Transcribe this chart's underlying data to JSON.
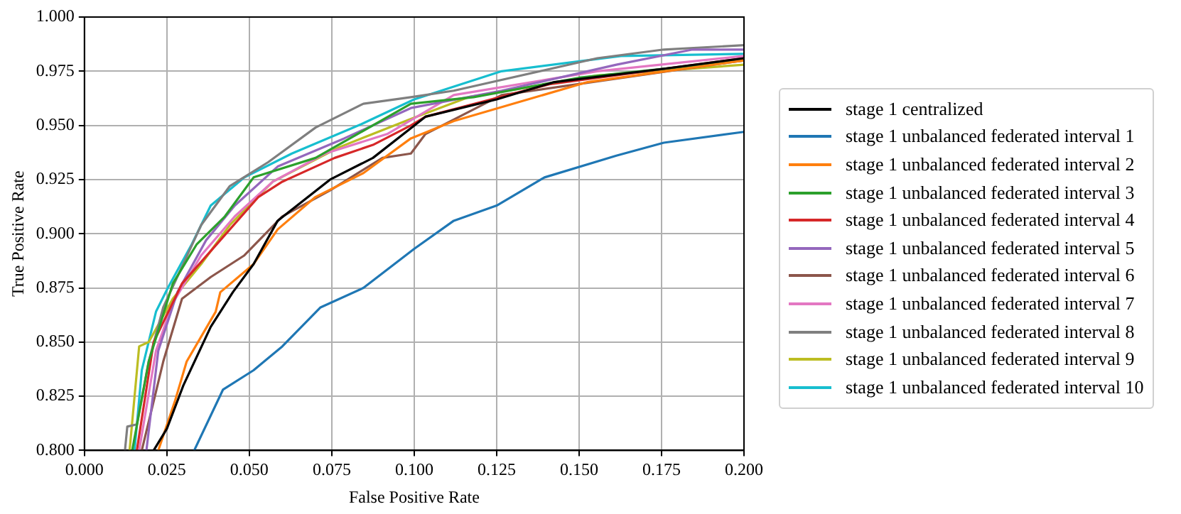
{
  "chart_data": {
    "type": "line",
    "xlabel": "False Positive Rate",
    "ylabel": "True Positive Rate",
    "xlim": [
      0,
      0.2
    ],
    "ylim": [
      0.8,
      1.0
    ],
    "xticks": [
      {
        "value": 0,
        "label": "0.000"
      },
      {
        "value": 0.025,
        "label": "0.025"
      },
      {
        "value": 0.05,
        "label": "0.050"
      },
      {
        "value": 0.075,
        "label": "0.075"
      },
      {
        "value": 0.1,
        "label": "0.100"
      },
      {
        "value": 0.125,
        "label": "0.125"
      },
      {
        "value": 0.15,
        "label": "0.150"
      },
      {
        "value": 0.175,
        "label": "0.175"
      },
      {
        "value": 0.2,
        "label": "0.200"
      }
    ],
    "yticks": [
      {
        "value": 0.8,
        "label": "0.800"
      },
      {
        "value": 0.825,
        "label": "0.825"
      },
      {
        "value": 0.85,
        "label": "0.850"
      },
      {
        "value": 0.875,
        "label": "0.875"
      },
      {
        "value": 0.9,
        "label": "0.900"
      },
      {
        "value": 0.925,
        "label": "0.925"
      },
      {
        "value": 0.95,
        "label": "0.950"
      },
      {
        "value": 0.975,
        "label": "0.975"
      },
      {
        "value": 1.0,
        "label": "1.000"
      }
    ],
    "grid": true,
    "legend": "right",
    "marker": "none",
    "line_style": "solid",
    "series": [
      {
        "name": "stage 1 centralized",
        "color": "#000000",
        "x": [
          0.021,
          0.025,
          0.03,
          0.0383,
          0.045,
          0.0513,
          0.0586,
          0.0745,
          0.0875,
          0.1034,
          0.125,
          0.1425,
          0.175,
          0.2
        ],
        "values": [
          0.8,
          0.81,
          0.83,
          0.857,
          0.873,
          0.886,
          0.906,
          0.925,
          0.935,
          0.954,
          0.962,
          0.97,
          0.976,
          0.981
        ]
      },
      {
        "name": "stage 1 unbalanced federated interval 1",
        "color": "#1f77b4",
        "x": [
          0.0333,
          0.042,
          0.0513,
          0.06,
          0.0716,
          0.0846,
          0.1,
          0.112,
          0.125,
          0.1395,
          0.1613,
          0.1757,
          0.2
        ],
        "values": [
          0.8,
          0.828,
          0.837,
          0.848,
          0.866,
          0.875,
          0.893,
          0.906,
          0.913,
          0.926,
          0.936,
          0.942,
          0.947
        ]
      },
      {
        "name": "stage 1 unbalanced federated interval 2",
        "color": "#ff7f0e",
        "x": [
          0.0224,
          0.0275,
          0.031,
          0.0398,
          0.0412,
          0.0513,
          0.0586,
          0.0701,
          0.0846,
          0.099,
          0.112,
          0.1526,
          0.2
        ],
        "values": [
          0.8,
          0.823,
          0.841,
          0.864,
          0.873,
          0.886,
          0.902,
          0.917,
          0.928,
          0.944,
          0.952,
          0.97,
          0.98
        ]
      },
      {
        "name": "stage 1 unbalanced federated interval 3",
        "color": "#2ca02c",
        "x": [
          0.0145,
          0.0195,
          0.0268,
          0.034,
          0.0426,
          0.0513,
          0.0701,
          0.099,
          0.118,
          0.15,
          0.2
        ],
        "values": [
          0.8,
          0.841,
          0.877,
          0.895,
          0.908,
          0.926,
          0.935,
          0.96,
          0.963,
          0.972,
          0.98
        ]
      },
      {
        "name": "stage 1 unbalanced federated interval 4",
        "color": "#d62728",
        "x": [
          0.0159,
          0.021,
          0.0296,
          0.0412,
          0.0528,
          0.06,
          0.0759,
          0.0875,
          0.099,
          0.1034,
          0.141,
          0.2
        ],
        "values": [
          0.8,
          0.85,
          0.877,
          0.897,
          0.917,
          0.924,
          0.935,
          0.941,
          0.95,
          0.954,
          0.969,
          0.981
        ]
      },
      {
        "name": "stage 1 unbalanced federated interval 5",
        "color": "#9467bd",
        "x": [
          0.0188,
          0.0224,
          0.0282,
          0.0369,
          0.0456,
          0.0586,
          0.0788,
          0.099,
          0.1265,
          0.1613,
          0.1844,
          0.2
        ],
        "values": [
          0.8,
          0.846,
          0.873,
          0.897,
          0.913,
          0.931,
          0.944,
          0.958,
          0.966,
          0.978,
          0.985,
          0.985
        ]
      },
      {
        "name": "stage 1 unbalanced federated interval 6",
        "color": "#8c564b",
        "x": [
          0.0174,
          0.0239,
          0.0296,
          0.0383,
          0.0485,
          0.06,
          0.0745,
          0.0904,
          0.099,
          0.1034,
          0.1265,
          0.2
        ],
        "values": [
          0.8,
          0.841,
          0.87,
          0.88,
          0.89,
          0.908,
          0.92,
          0.935,
          0.937,
          0.946,
          0.964,
          0.98
        ]
      },
      {
        "name": "stage 1 unbalanced federated interval 7",
        "color": "#e377c2",
        "x": [
          0.0166,
          0.0217,
          0.0268,
          0.0354,
          0.0456,
          0.0571,
          0.073,
          0.0918,
          0.112,
          0.1555,
          0.2
        ],
        "values": [
          0.8,
          0.846,
          0.868,
          0.89,
          0.908,
          0.924,
          0.937,
          0.946,
          0.964,
          0.975,
          0.982
        ]
      },
      {
        "name": "stage 1 unbalanced federated interval 8",
        "color": "#7f7f7f",
        "x": [
          0.0123,
          0.013,
          0.0159,
          0.0195,
          0.0239,
          0.0354,
          0.0441,
          0.0557,
          0.0701,
          0.0846,
          0.099,
          0.112,
          0.1555,
          0.1757,
          0.2
        ],
        "values": [
          0.8,
          0.811,
          0.812,
          0.841,
          0.866,
          0.904,
          0.922,
          0.933,
          0.949,
          0.96,
          0.963,
          0.966,
          0.981,
          0.985,
          0.987
        ]
      },
      {
        "name": "stage 1 unbalanced federated interval 9",
        "color": "#bcbd22",
        "x": [
          0.0137,
          0.0166,
          0.0195,
          0.0268,
          0.0354,
          0.0441,
          0.0571,
          0.0774,
          0.099,
          0.1164,
          0.1555,
          0.2
        ],
        "values": [
          0.8,
          0.848,
          0.85,
          0.87,
          0.886,
          0.904,
          0.924,
          0.94,
          0.953,
          0.963,
          0.973,
          0.978
        ]
      },
      {
        "name": "stage 1 unbalanced federated interval 10",
        "color": "#17becf",
        "x": [
          0.0152,
          0.0174,
          0.0217,
          0.0253,
          0.0325,
          0.0383,
          0.0485,
          0.0629,
          0.0846,
          0.1,
          0.1265,
          0.1627,
          0.2
        ],
        "values": [
          0.8,
          0.837,
          0.864,
          0.875,
          0.895,
          0.913,
          0.926,
          0.937,
          0.951,
          0.962,
          0.975,
          0.982,
          0.983
        ]
      }
    ]
  }
}
